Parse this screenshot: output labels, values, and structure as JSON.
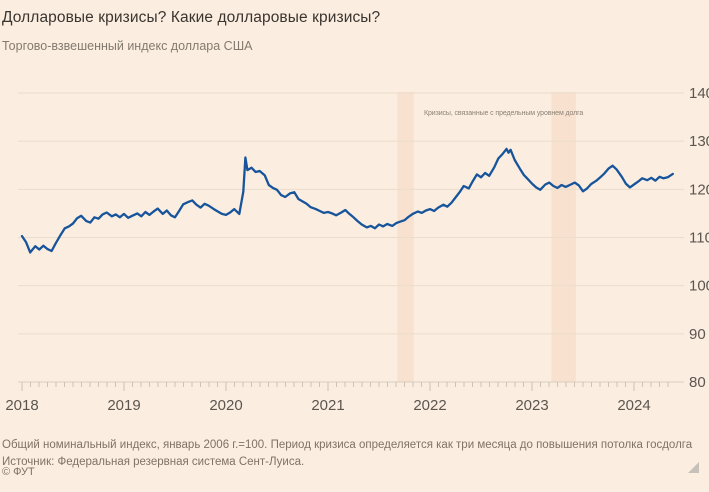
{
  "annotation": {
    "text": "Кризисы, связанные с предельным уровнем долга"
  },
  "footer": {
    "note": "Общий номинальный индекс, январь 2006 г.=100. Период кризиса определяется как три месяца до повышения потолка госдолга Источник: Федеральная резервная система Сент-Луиса.",
    "copyright": "© ФУТ"
  },
  "colors": {
    "background": "#FBEEE0",
    "crisis_band": "#F8E1CE",
    "gridline": "#EBDCCB",
    "axis_line": "#D9CDBF",
    "tick": "#CFC3B5",
    "line": "#17549B",
    "tick_label": "#5C564F",
    "title_text": "#3A352F",
    "subtitle_text": "#837A6F"
  },
  "chart_data": {
    "type": "line",
    "title": "Долларовые кризисы? Какие долларовые кризисы?",
    "subtitle": "Торгово-взвешенный индекс доллара США",
    "xlabel": "",
    "ylabel": "",
    "xlim": [
      2018,
      2024.45
    ],
    "ylim": [
      80,
      140
    ],
    "x_ticks": [
      2018,
      2019,
      2020,
      2021,
      2022,
      2023,
      2024
    ],
    "y_ticks": [
      80,
      90,
      100,
      110,
      120,
      130,
      140
    ],
    "grid": "horizontal",
    "y_axis_side": "right",
    "legend": "none",
    "crisis_bands": [
      {
        "start": 2021.68,
        "end": 2021.84
      },
      {
        "start": 2023.19,
        "end": 2023.43
      }
    ],
    "series": [
      {
        "name": "Торгово-взвешенный индекс доллара США",
        "points": [
          [
            2018.0,
            110.3
          ],
          [
            2018.04,
            109.0
          ],
          [
            2018.08,
            106.9
          ],
          [
            2018.13,
            108.2
          ],
          [
            2018.17,
            107.5
          ],
          [
            2018.21,
            108.3
          ],
          [
            2018.25,
            107.6
          ],
          [
            2018.29,
            107.2
          ],
          [
            2018.33,
            108.8
          ],
          [
            2018.38,
            110.6
          ],
          [
            2018.42,
            111.9
          ],
          [
            2018.46,
            112.3
          ],
          [
            2018.5,
            112.9
          ],
          [
            2018.54,
            114.0
          ],
          [
            2018.58,
            114.5
          ],
          [
            2018.63,
            113.4
          ],
          [
            2018.67,
            113.1
          ],
          [
            2018.71,
            114.2
          ],
          [
            2018.75,
            113.9
          ],
          [
            2018.79,
            114.8
          ],
          [
            2018.83,
            115.2
          ],
          [
            2018.88,
            114.4
          ],
          [
            2018.92,
            114.8
          ],
          [
            2018.96,
            114.2
          ],
          [
            2019.0,
            114.9
          ],
          [
            2019.04,
            114.1
          ],
          [
            2019.08,
            114.5
          ],
          [
            2019.13,
            115.0
          ],
          [
            2019.17,
            114.4
          ],
          [
            2019.21,
            115.3
          ],
          [
            2019.25,
            114.7
          ],
          [
            2019.29,
            115.4
          ],
          [
            2019.33,
            116.0
          ],
          [
            2019.38,
            114.9
          ],
          [
            2019.42,
            115.6
          ],
          [
            2019.46,
            114.6
          ],
          [
            2019.5,
            114.2
          ],
          [
            2019.54,
            115.5
          ],
          [
            2019.58,
            116.9
          ],
          [
            2019.63,
            117.4
          ],
          [
            2019.67,
            117.7
          ],
          [
            2019.71,
            116.8
          ],
          [
            2019.75,
            116.2
          ],
          [
            2019.79,
            117.0
          ],
          [
            2019.83,
            116.6
          ],
          [
            2019.88,
            115.9
          ],
          [
            2019.92,
            115.4
          ],
          [
            2019.96,
            114.9
          ],
          [
            2020.0,
            114.7
          ],
          [
            2020.04,
            115.2
          ],
          [
            2020.08,
            115.9
          ],
          [
            2020.13,
            114.9
          ],
          [
            2020.17,
            119.5
          ],
          [
            2020.19,
            126.6
          ],
          [
            2020.21,
            124.0
          ],
          [
            2020.25,
            124.5
          ],
          [
            2020.29,
            123.6
          ],
          [
            2020.33,
            123.8
          ],
          [
            2020.38,
            122.9
          ],
          [
            2020.42,
            120.9
          ],
          [
            2020.46,
            120.3
          ],
          [
            2020.5,
            119.9
          ],
          [
            2020.54,
            118.8
          ],
          [
            2020.58,
            118.4
          ],
          [
            2020.63,
            119.2
          ],
          [
            2020.67,
            119.4
          ],
          [
            2020.71,
            118.0
          ],
          [
            2020.75,
            117.5
          ],
          [
            2020.79,
            117.0
          ],
          [
            2020.83,
            116.3
          ],
          [
            2020.88,
            115.9
          ],
          [
            2020.92,
            115.5
          ],
          [
            2020.96,
            115.1
          ],
          [
            2021.0,
            115.3
          ],
          [
            2021.04,
            115.0
          ],
          [
            2021.08,
            114.6
          ],
          [
            2021.13,
            115.2
          ],
          [
            2021.17,
            115.7
          ],
          [
            2021.21,
            114.9
          ],
          [
            2021.25,
            114.2
          ],
          [
            2021.29,
            113.4
          ],
          [
            2021.33,
            112.7
          ],
          [
            2021.38,
            112.1
          ],
          [
            2021.42,
            112.4
          ],
          [
            2021.46,
            111.9
          ],
          [
            2021.5,
            112.7
          ],
          [
            2021.54,
            112.3
          ],
          [
            2021.58,
            112.8
          ],
          [
            2021.63,
            112.4
          ],
          [
            2021.67,
            113.0
          ],
          [
            2021.71,
            113.3
          ],
          [
            2021.75,
            113.6
          ],
          [
            2021.79,
            114.3
          ],
          [
            2021.83,
            114.9
          ],
          [
            2021.88,
            115.4
          ],
          [
            2021.92,
            115.1
          ],
          [
            2021.96,
            115.6
          ],
          [
            2022.0,
            115.9
          ],
          [
            2022.04,
            115.5
          ],
          [
            2022.08,
            116.2
          ],
          [
            2022.13,
            116.8
          ],
          [
            2022.17,
            116.4
          ],
          [
            2022.21,
            117.2
          ],
          [
            2022.25,
            118.3
          ],
          [
            2022.29,
            119.4
          ],
          [
            2022.33,
            120.7
          ],
          [
            2022.38,
            120.2
          ],
          [
            2022.42,
            121.7
          ],
          [
            2022.46,
            123.1
          ],
          [
            2022.5,
            122.5
          ],
          [
            2022.54,
            123.4
          ],
          [
            2022.58,
            122.8
          ],
          [
            2022.63,
            124.6
          ],
          [
            2022.67,
            126.4
          ],
          [
            2022.71,
            127.3
          ],
          [
            2022.75,
            128.4
          ],
          [
            2022.77,
            127.6
          ],
          [
            2022.79,
            128.2
          ],
          [
            2022.83,
            126.1
          ],
          [
            2022.88,
            124.3
          ],
          [
            2022.92,
            123.0
          ],
          [
            2022.96,
            122.1
          ],
          [
            2023.0,
            121.2
          ],
          [
            2023.04,
            120.4
          ],
          [
            2023.08,
            119.9
          ],
          [
            2023.13,
            121.0
          ],
          [
            2023.17,
            121.4
          ],
          [
            2023.21,
            120.7
          ],
          [
            2023.25,
            120.3
          ],
          [
            2023.29,
            120.9
          ],
          [
            2023.33,
            120.5
          ],
          [
            2023.38,
            121.0
          ],
          [
            2023.42,
            121.4
          ],
          [
            2023.46,
            120.8
          ],
          [
            2023.5,
            119.6
          ],
          [
            2023.54,
            120.2
          ],
          [
            2023.58,
            121.1
          ],
          [
            2023.63,
            121.8
          ],
          [
            2023.67,
            122.5
          ],
          [
            2023.71,
            123.3
          ],
          [
            2023.75,
            124.3
          ],
          [
            2023.79,
            124.9
          ],
          [
            2023.83,
            124.1
          ],
          [
            2023.88,
            122.6
          ],
          [
            2023.92,
            121.2
          ],
          [
            2023.96,
            120.4
          ],
          [
            2024.0,
            121.0
          ],
          [
            2024.04,
            121.6
          ],
          [
            2024.08,
            122.3
          ],
          [
            2024.13,
            121.9
          ],
          [
            2024.17,
            122.4
          ],
          [
            2024.21,
            121.8
          ],
          [
            2024.25,
            122.6
          ],
          [
            2024.29,
            122.3
          ],
          [
            2024.33,
            122.5
          ],
          [
            2024.38,
            123.2
          ]
        ]
      }
    ]
  }
}
